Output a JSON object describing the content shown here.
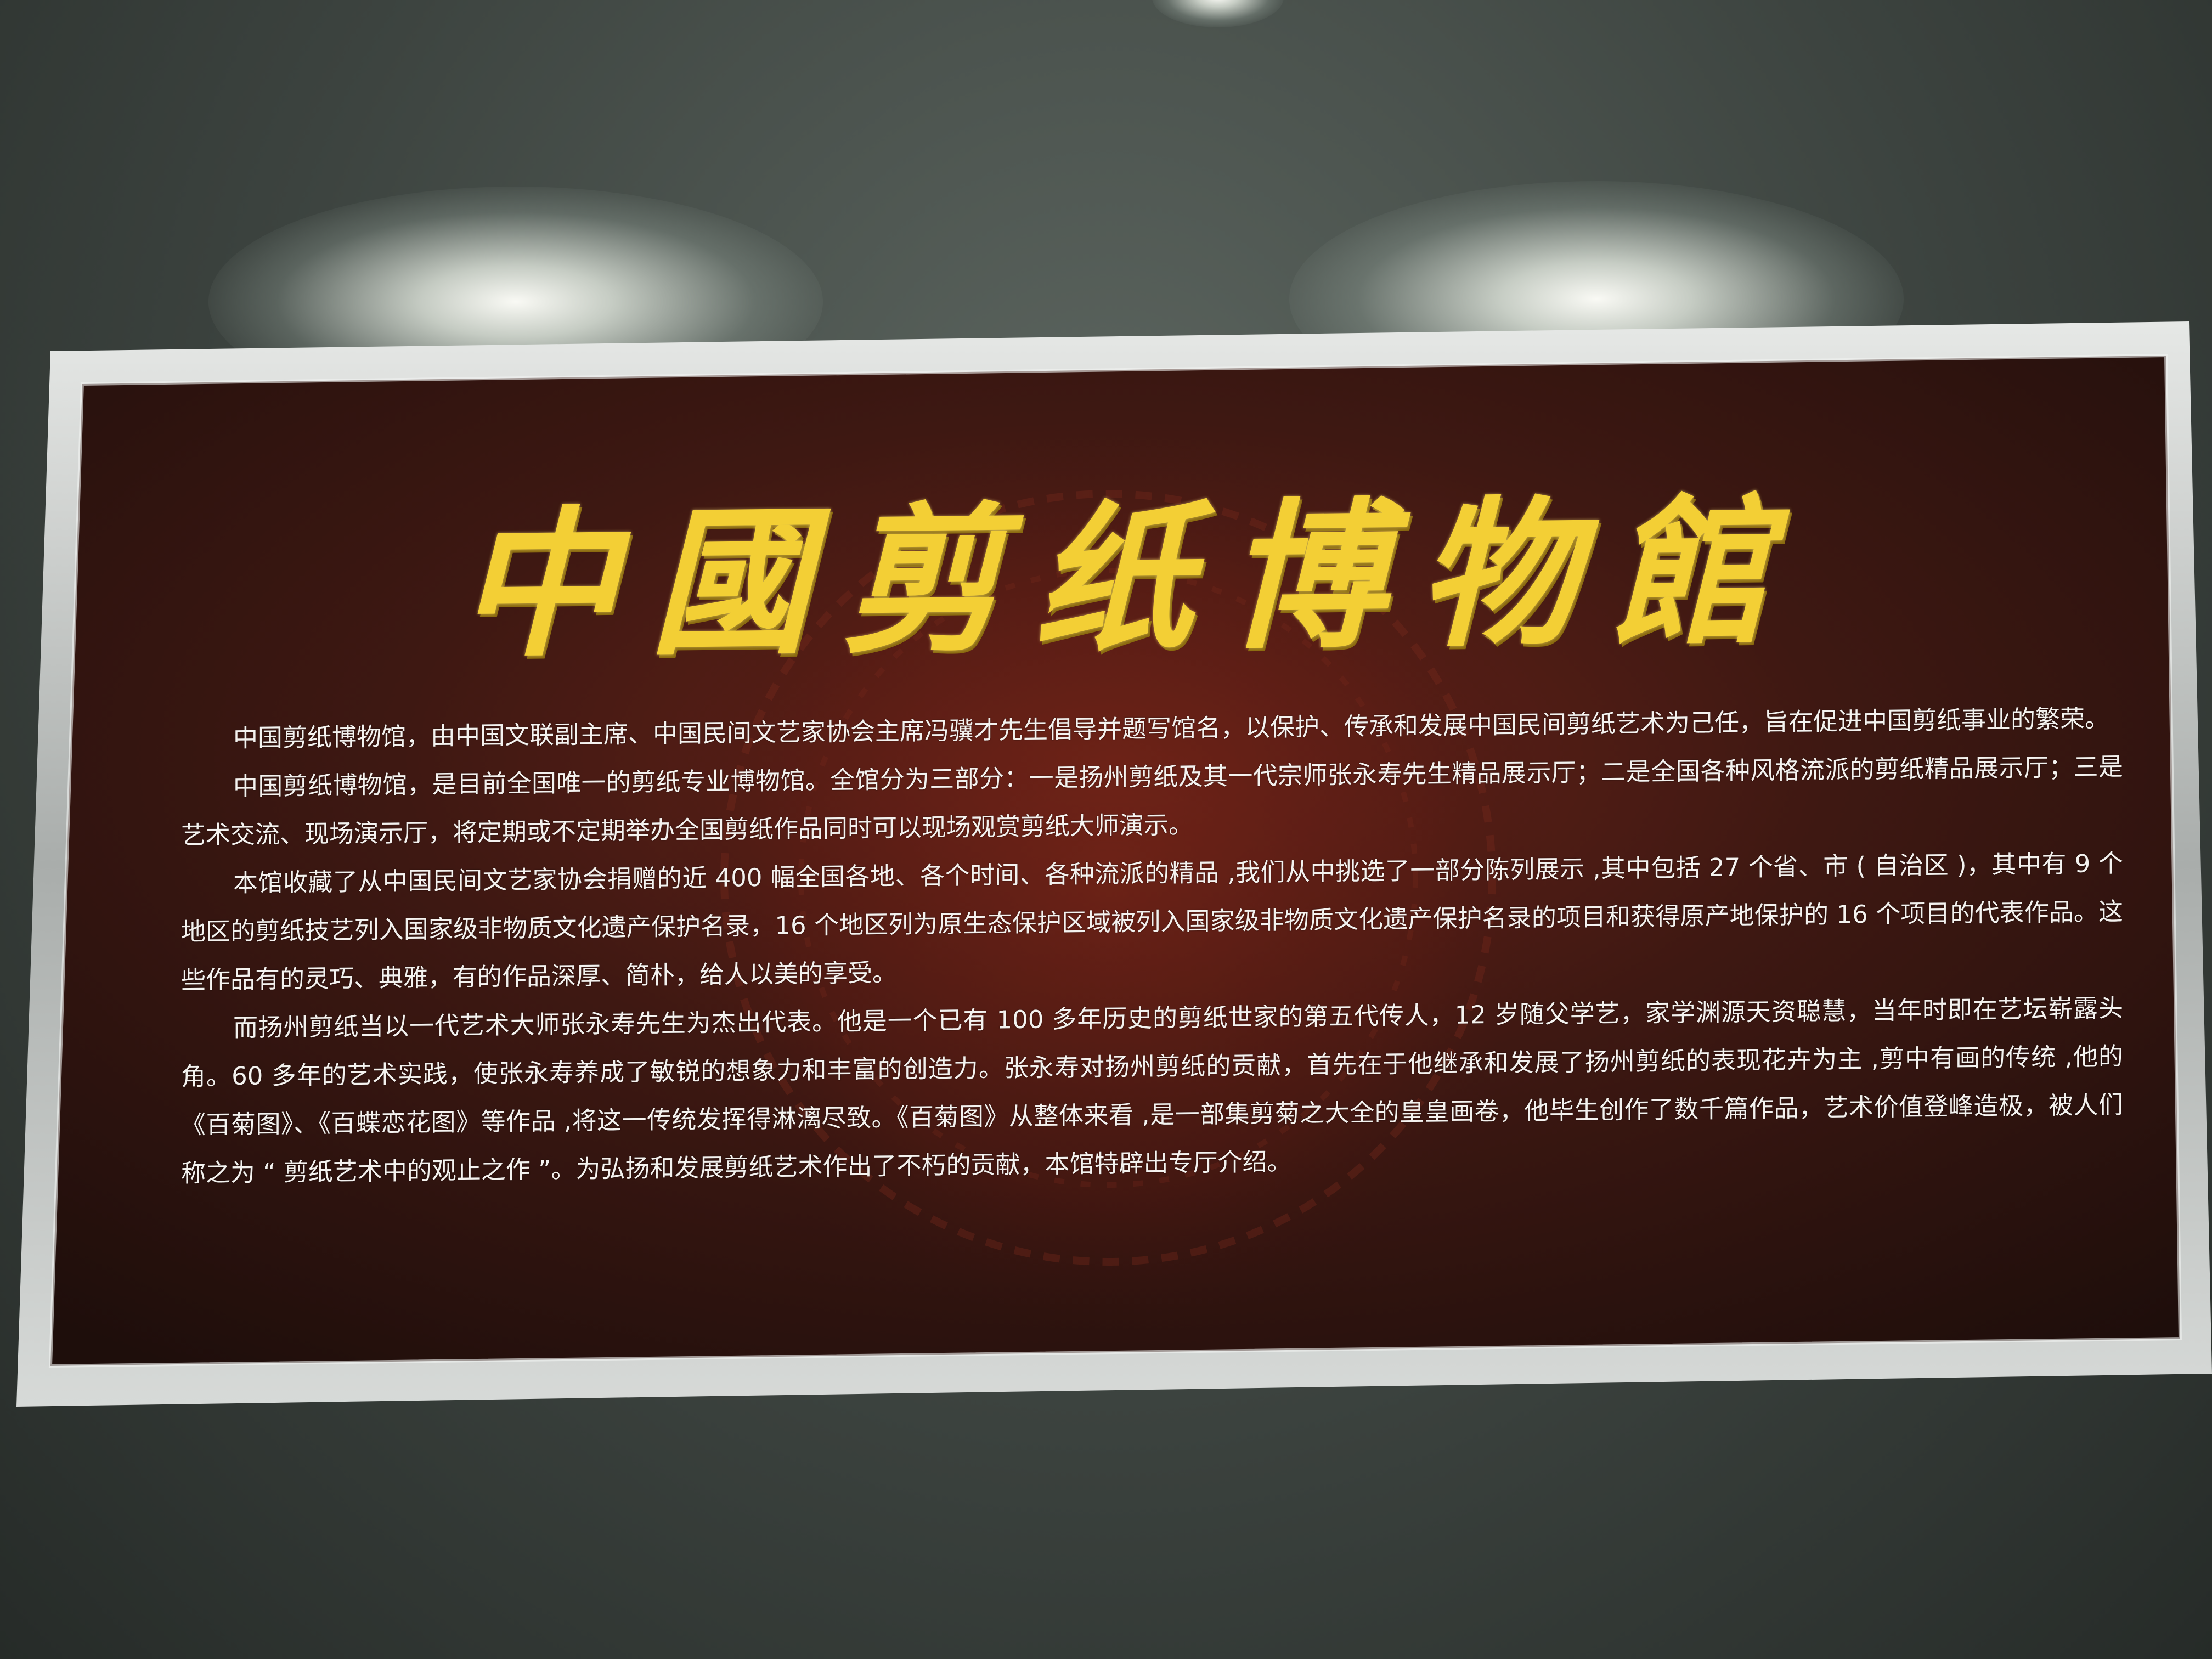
{
  "sign": {
    "title": "中國剪纸博物館",
    "paragraphs": [
      "中国剪纸博物馆，由中国文联副主席、中国民间文艺家协会主席冯骥才先生倡导并题写馆名，以保护、传承和发展中国民间剪纸艺术为己任，旨在促进中国剪纸事业的繁荣。",
      "中国剪纸博物馆，是目前全国唯一的剪纸专业博物馆。全馆分为三部分：一是扬州剪纸及其一代宗师张永寿先生精品展示厅；二是全国各种风格流派的剪纸精品展示厅；三是艺术交流、现场演示厅，将定期或不定期举办全国剪纸作品同时可以现场观赏剪纸大师演示。",
      "本馆收藏了从中国民间文艺家协会捐赠的近 400 幅全国各地、各个时间、各种流派的精品 ,我们从中挑选了一部分陈列展示 ,其中包括 27 个省、市 ( 自治区 )，其中有 9 个地区的剪纸技艺列入国家级非物质文化遗产保护名录，16 个地区列为原生态保护区域被列入国家级非物质文化遗产保护名录的项目和获得原产地保护的 16 个项目的代表作品。这些作品有的灵巧、典雅，有的作品深厚、简朴，给人以美的享受。",
      "而扬州剪纸当以一代艺术大师张永寿先生为杰出代表。他是一个已有 100 多年历史的剪纸世家的第五代传人，12 岁随父学艺，家学渊源天资聪慧，当年时即在艺坛崭露头角。60 多年的艺术实践，使张永寿养成了敏锐的想象力和丰富的创造力。张永寿对扬州剪纸的贡献，首先在于他继承和发展了扬州剪纸的表现花卉为主 ,剪中有画的传统 ,他的《百菊图》、《百蝶恋花图》等作品 ,将这一传统发挥得淋漓尽致。《百菊图》从整体来看 ,是一部集剪菊之大全的皇皇画卷，他毕生创作了数千篇作品，艺术价值登峰造极，被人们称之为 “ 剪纸艺术中的观止之作 ”。为弘扬和发展剪纸艺术作出了不朽的贡献，本馆特辟出专厅介绍。"
    ]
  },
  "colors": {
    "title_gold": "#f3cf35",
    "board_dark": "#2a1410",
    "board_red": "#5a1d16",
    "frame_silver": "#c9ccca",
    "wall": "#4a514d"
  }
}
